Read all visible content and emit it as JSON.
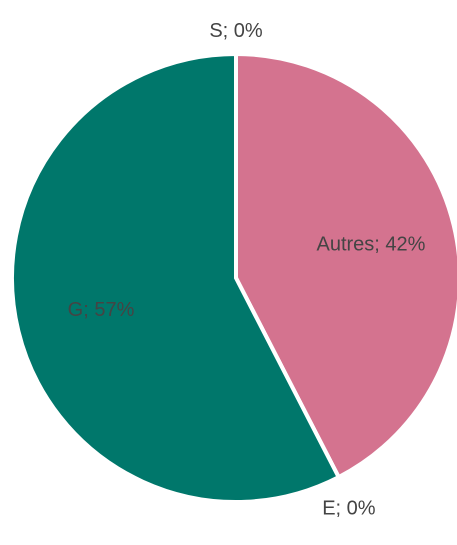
{
  "chart_data": {
    "type": "pie",
    "categories": [
      "Autres",
      "E",
      "G",
      "S"
    ],
    "values": [
      42,
      0,
      57,
      0
    ],
    "value_labels": [
      "Autres; 42%",
      "E; 0%",
      "G; 57%",
      "S; 0%"
    ],
    "colors": [
      "#d4738f",
      "#e8a33a",
      "#00776b",
      "#4472c4"
    ]
  }
}
